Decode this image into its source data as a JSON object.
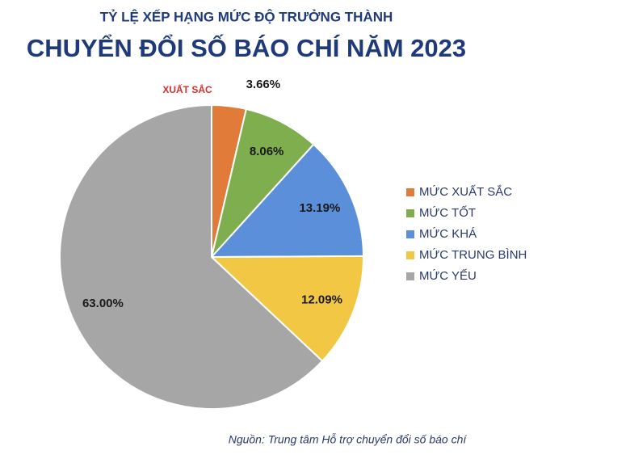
{
  "chart_data": {
    "type": "pie",
    "title": "CHUYỂN ĐỔI SỐ BÁO CHÍ NĂM 2023",
    "subtitle": "TỶ LỆ XẾP HẠNG MỨC ĐỘ TRƯỞNG THÀNH",
    "categories": [
      "MỨC XUẤT SẮC",
      "MỨC TỐT",
      "MỨC KHÁ",
      "MỨC TRUNG BÌNH",
      "MỨC YẾU"
    ],
    "values": [
      3.66,
      8.06,
      13.19,
      12.09,
      63.0
    ],
    "value_labels": [
      "3.66%",
      "8.06%",
      "13.19%",
      "12.09%",
      "63.00%"
    ],
    "colors": [
      "#e07b39",
      "#7fae4f",
      "#5b8fd9",
      "#f2c744",
      "#a6a6a6"
    ],
    "annotation": "XUẤT SẮC",
    "source": "Nguồn: Trung tâm Hỗ trợ chuyển đổi số báo chí",
    "legend": "right"
  }
}
